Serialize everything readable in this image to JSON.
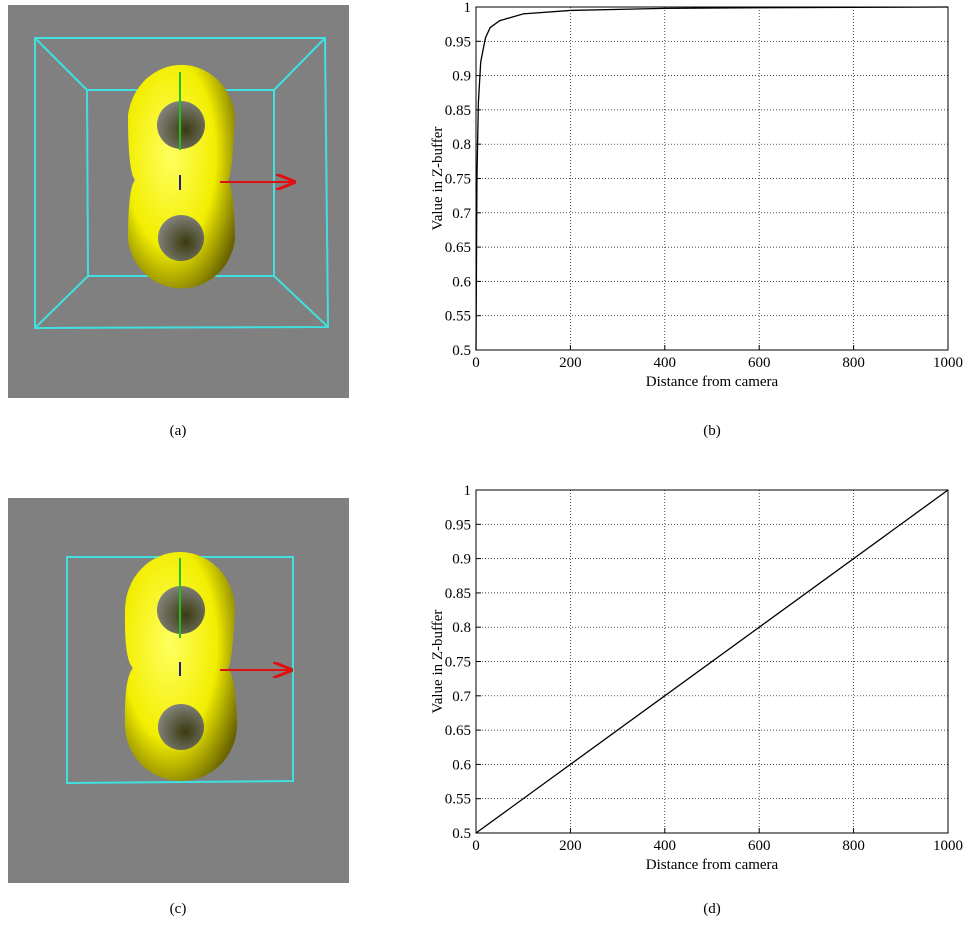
{
  "chart_data": [
    {
      "type": "line",
      "xlabel": "Distance from camera",
      "ylabel": "Value in Z-buffer",
      "x": [
        0,
        2,
        5,
        10,
        20,
        30,
        50,
        100,
        200,
        400,
        600,
        800,
        1000
      ],
      "values": [
        0.5,
        0.75,
        0.86,
        0.92,
        0.955,
        0.97,
        0.98,
        0.99,
        0.995,
        0.998,
        0.999,
        0.9995,
        1
      ],
      "color": "#000000",
      "xlim": [
        0,
        1000
      ],
      "ylim": [
        0.5,
        1
      ],
      "xticks": [
        0,
        200,
        400,
        600,
        800,
        1000
      ],
      "yticks": [
        0.5,
        0.55,
        0.6,
        0.65,
        0.7,
        0.75,
        0.8,
        0.85,
        0.9,
        0.95,
        1
      ],
      "grid": true
    },
    {
      "type": "line",
      "xlabel": "Distance from camera",
      "ylabel": "Value in Z-buffer",
      "x": [
        0,
        1000
      ],
      "values": [
        0.5,
        1
      ],
      "color": "#000000",
      "xlim": [
        0,
        1000
      ],
      "ylim": [
        0.5,
        1
      ],
      "xticks": [
        0,
        200,
        400,
        600,
        800,
        1000
      ],
      "yticks": [
        0.5,
        0.55,
        0.6,
        0.65,
        0.7,
        0.75,
        0.8,
        0.85,
        0.9,
        0.95,
        1
      ],
      "grid": true
    }
  ],
  "captions": [
    "(a)",
    "(b)",
    "(c)",
    "(d)"
  ]
}
